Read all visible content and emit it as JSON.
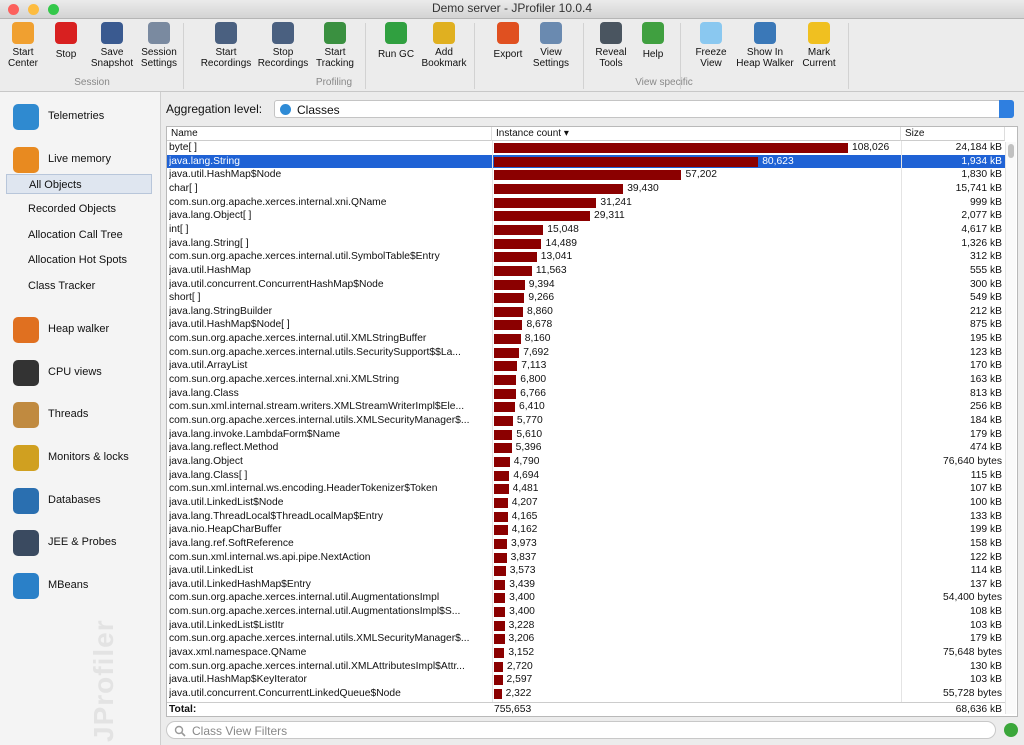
{
  "window": {
    "title": "Demo server - JProfiler 10.0.4"
  },
  "toolbar": {
    "groups": [
      {
        "label": "Session",
        "tools": [
          {
            "label": [
              "Start",
              "Center"
            ]
          },
          {
            "label": [
              "Stop"
            ]
          },
          {
            "label": [
              "Save",
              "Snapshot"
            ]
          },
          {
            "label": [
              "Session",
              "Settings"
            ]
          }
        ]
      },
      {
        "label": "Profiling",
        "tools": [
          {
            "label": [
              "Start",
              "Recordings"
            ]
          },
          {
            "label": [
              "Stop",
              "Recordings"
            ]
          },
          {
            "label": [
              "Start",
              "Tracking"
            ]
          },
          {
            "label": [
              "Run GC"
            ]
          },
          {
            "label": [
              "Add",
              "Bookmark"
            ]
          }
        ]
      },
      {
        "label": "View specific",
        "tools": [
          {
            "label": [
              "Export"
            ]
          },
          {
            "label": [
              "View",
              "Settings"
            ]
          },
          {
            "label": [
              "Reveal",
              "Tools"
            ]
          },
          {
            "label": [
              "Help"
            ]
          },
          {
            "label": [
              "Freeze",
              "View"
            ]
          },
          {
            "label": [
              "Show In",
              "Heap Walker"
            ]
          },
          {
            "label": [
              "Mark",
              "Current"
            ]
          }
        ]
      }
    ]
  },
  "sidebar": {
    "items": [
      {
        "label": "Telemetries"
      },
      {
        "label": "Live memory",
        "children": [
          "All Objects",
          "Recorded Objects",
          "Allocation Call Tree",
          "Allocation Hot Spots",
          "Class Tracker"
        ]
      },
      {
        "label": "Heap walker"
      },
      {
        "label": "CPU views"
      },
      {
        "label": "Threads"
      },
      {
        "label": "Monitors & locks"
      },
      {
        "label": "Databases"
      },
      {
        "label": "JEE & Probes"
      },
      {
        "label": "MBeans"
      }
    ],
    "watermark": "JProfiler"
  },
  "aggregation": {
    "label": "Aggregation level:",
    "value": "Classes"
  },
  "table": {
    "columns": [
      "Name",
      "Instance count",
      "Size"
    ],
    "selected_row": 1,
    "rows": [
      [
        "byte[ ]",
        108026,
        "108,026",
        "24,184 kB"
      ],
      [
        "java.lang.String",
        80623,
        "80,623",
        "1,934 kB"
      ],
      [
        "java.util.HashMap$Node",
        57202,
        "57,202",
        "1,830 kB"
      ],
      [
        "char[ ]",
        39430,
        "39,430",
        "15,741 kB"
      ],
      [
        "com.sun.org.apache.xerces.internal.xni.QName",
        31241,
        "31,241",
        "999 kB"
      ],
      [
        "java.lang.Object[ ]",
        29311,
        "29,311",
        "2,077 kB"
      ],
      [
        "int[ ]",
        15048,
        "15,048",
        "4,617 kB"
      ],
      [
        "java.lang.String[ ]",
        14489,
        "14,489",
        "1,326 kB"
      ],
      [
        "com.sun.org.apache.xerces.internal.util.SymbolTable$Entry",
        13041,
        "13,041",
        "312 kB"
      ],
      [
        "java.util.HashMap",
        11563,
        "11,563",
        "555 kB"
      ],
      [
        "java.util.concurrent.ConcurrentHashMap$Node",
        9394,
        "9,394",
        "300 kB"
      ],
      [
        "short[ ]",
        9266,
        "9,266",
        "549 kB"
      ],
      [
        "java.lang.StringBuilder",
        8860,
        "8,860",
        "212 kB"
      ],
      [
        "java.util.HashMap$Node[ ]",
        8678,
        "8,678",
        "875 kB"
      ],
      [
        "com.sun.org.apache.xerces.internal.util.XMLStringBuffer",
        8160,
        "8,160",
        "195 kB"
      ],
      [
        "com.sun.org.apache.xerces.internal.utils.SecuritySupport$$La...",
        7692,
        "7,692",
        "123 kB"
      ],
      [
        "java.util.ArrayList",
        7113,
        "7,113",
        "170 kB"
      ],
      [
        "com.sun.org.apache.xerces.internal.xni.XMLString",
        6800,
        "6,800",
        "163 kB"
      ],
      [
        "java.lang.Class",
        6766,
        "6,766",
        "813 kB"
      ],
      [
        "com.sun.xml.internal.stream.writers.XMLStreamWriterImpl$Ele...",
        6410,
        "6,410",
        "256 kB"
      ],
      [
        "com.sun.org.apache.xerces.internal.utils.XMLSecurityManager$...",
        5770,
        "5,770",
        "184 kB"
      ],
      [
        "java.lang.invoke.LambdaForm$Name",
        5610,
        "5,610",
        "179 kB"
      ],
      [
        "java.lang.reflect.Method",
        5396,
        "5,396",
        "474 kB"
      ],
      [
        "java.lang.Object",
        4790,
        "4,790",
        "76,640 bytes"
      ],
      [
        "java.lang.Class[ ]",
        4694,
        "4,694",
        "115 kB"
      ],
      [
        "com.sun.xml.internal.ws.encoding.HeaderTokenizer$Token",
        4481,
        "4,481",
        "107 kB"
      ],
      [
        "java.util.LinkedList$Node",
        4207,
        "4,207",
        "100 kB"
      ],
      [
        "java.lang.ThreadLocal$ThreadLocalMap$Entry",
        4165,
        "4,165",
        "133 kB"
      ],
      [
        "java.nio.HeapCharBuffer",
        4162,
        "4,162",
        "199 kB"
      ],
      [
        "java.lang.ref.SoftReference",
        3973,
        "3,973",
        "158 kB"
      ],
      [
        "com.sun.xml.internal.ws.api.pipe.NextAction",
        3837,
        "3,837",
        "122 kB"
      ],
      [
        "java.util.LinkedList",
        3573,
        "3,573",
        "114 kB"
      ],
      [
        "java.util.LinkedHashMap$Entry",
        3439,
        "3,439",
        "137 kB"
      ],
      [
        "com.sun.org.apache.xerces.internal.util.AugmentationsImpl",
        3400,
        "3,400",
        "54,400 bytes"
      ],
      [
        "com.sun.org.apache.xerces.internal.util.AugmentationsImpl$S...",
        3400,
        "3,400",
        "108 kB"
      ],
      [
        "java.util.LinkedList$ListItr",
        3228,
        "3,228",
        "103 kB"
      ],
      [
        "com.sun.org.apache.xerces.internal.utils.XMLSecurityManager$...",
        3206,
        "3,206",
        "179 kB"
      ],
      [
        "javax.xml.namespace.QName",
        3152,
        "3,152",
        "75,648 bytes"
      ],
      [
        "com.sun.org.apache.xerces.internal.util.XMLAttributesImpl$Attr...",
        2720,
        "2,720",
        "130 kB"
      ],
      [
        "java.util.HashMap$KeyIterator",
        2597,
        "2,597",
        "103 kB"
      ],
      [
        "java.util.concurrent.ConcurrentLinkedQueue$Node",
        2322,
        "2,322",
        "55,728 bytes"
      ]
    ],
    "total": {
      "label": "Total:",
      "count": "755,653",
      "size": "68,636 kB"
    }
  },
  "filter": {
    "placeholder": "Class View Filters"
  }
}
